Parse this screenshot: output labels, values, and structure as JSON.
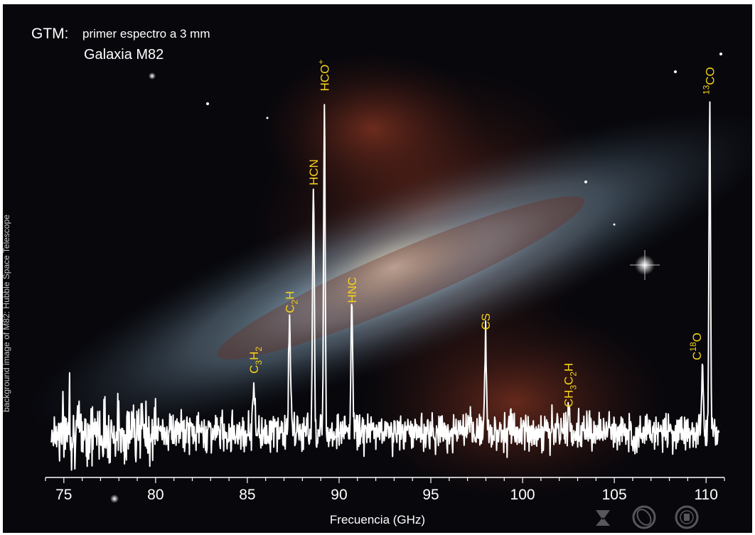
{
  "header": {
    "instrument": "GTM:",
    "subtitle": "primer espectro a 3 mm",
    "object": "Galaxia M82"
  },
  "credit": "background image of M82: Hubble Space Telescope",
  "colors": {
    "spectrum": "#ffffff",
    "line_labels": "#f5d21a",
    "axis": "#ffffff"
  },
  "logos": [
    "inaoe-logo",
    "gtm-lmt-logo",
    "umass-seal"
  ],
  "chart_data": {
    "type": "line",
    "xlabel": "Frecuencia (GHz)",
    "ylabel": "",
    "xlim": [
      74,
      111
    ],
    "ylim": [
      -0.6,
      10.6
    ],
    "xticks": [
      75,
      80,
      85,
      90,
      95,
      100,
      105,
      110
    ],
    "y_axis_shown": false,
    "grid": false,
    "noise_rms": 0.35,
    "spurious_spikes": [
      {
        "x": 75.3,
        "y": 1.8
      },
      {
        "x": 79.0,
        "y": 1.5
      }
    ],
    "lines": [
      {
        "species": "C3H2",
        "x": 85.35,
        "peak": 1.6
      },
      {
        "species": "C2H",
        "x": 87.3,
        "peak": 3.4
      },
      {
        "species": "HCN",
        "x": 88.6,
        "peak": 7.2
      },
      {
        "species": "HCO+",
        "x": 89.2,
        "peak": 10.0
      },
      {
        "species": "HNC",
        "x": 90.7,
        "peak": 3.7
      },
      {
        "species": "CS",
        "x": 97.98,
        "peak": 2.9
      },
      {
        "species": "CH3C2H",
        "x": 102.5,
        "peak": 0.6
      },
      {
        "species": "C18O",
        "x": 109.8,
        "peak": 2.0
      },
      {
        "species": "13CO",
        "x": 110.2,
        "peak": 9.9
      }
    ]
  }
}
